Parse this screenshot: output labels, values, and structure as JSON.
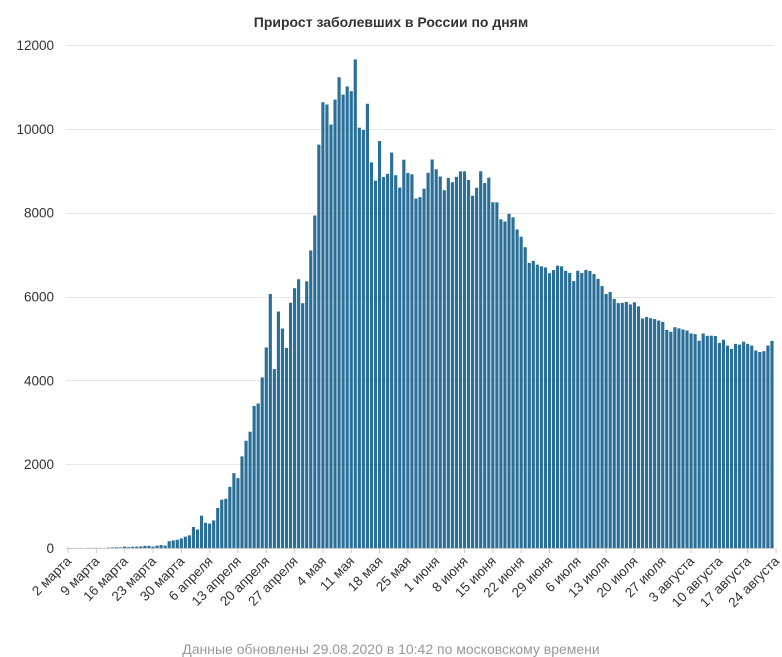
{
  "chart_data": {
    "type": "bar",
    "title": "Прирост заболевших в России по дням",
    "footer": "Данные обновлены 29.08.2020 в 10:42 по московскому времени",
    "xlabel": "",
    "ylabel": "",
    "ylim": [
      0,
      12000
    ],
    "yticks": [
      "0",
      "2000",
      "4000",
      "6000",
      "8000",
      "10000",
      "12000"
    ],
    "ytick_values": [
      0,
      2000,
      4000,
      6000,
      8000,
      10000,
      12000
    ],
    "xtick_labels": [
      "2 марта",
      "9 марта",
      "16 марта",
      "23 марта",
      "30 марта",
      "6 апреля",
      "13 апреля",
      "20 апреля",
      "27 апреля",
      "4 мая",
      "11 мая",
      "18 мая",
      "25 мая",
      "1 июня",
      "8 июня",
      "15 июня",
      "22 июня",
      "29 июня",
      "6 июля",
      "13 июля",
      "20 июля",
      "27 июля",
      "3 августа",
      "10 августа",
      "17 августа",
      "24 августа"
    ],
    "grid": true,
    "legend": "none",
    "bar_color": "#2a6f97",
    "start_date": "2 марта",
    "values": [
      3,
      0,
      1,
      2,
      0,
      4,
      3,
      3,
      3,
      0,
      8,
      14,
      17,
      14,
      34,
      20,
      29,
      32,
      38,
      52,
      54,
      33,
      57,
      71,
      57,
      163,
      182,
      196,
      228,
      270,
      302,
      501,
      440,
      771,
      601,
      582,
      658,
      954,
      1154,
      1175,
      1459,
      1786,
      1667,
      2186,
      2558,
      2774,
      3388,
      3448,
      4070,
      4785,
      6060,
      4268,
      5642,
      5236,
      4774,
      5849,
      6198,
      6411,
      5841,
      6361,
      7099,
      7933,
      9623,
      10633,
      10581,
      10102,
      10699,
      11231,
      10817,
      11012,
      10899,
      11656,
      10028,
      9974,
      10598,
      9200,
      8764,
      9709,
      8849,
      8926,
      9434,
      8894,
      8599,
      9263,
      8946,
      8915,
      8338,
      8371,
      8572,
      8952,
      9268,
      9035,
      8863,
      8536,
      8831,
      8726,
      8855,
      8984,
      8985,
      8779,
      8404,
      8595,
      8987,
      8706,
      8835,
      8248,
      8246,
      7843,
      7790,
      7972,
      7889,
      7600,
      7425,
      7176,
      6800,
      6852,
      6760,
      6719,
      6693,
      6556,
      6632,
      6736,
      6719,
      6611,
      6562,
      6368,
      6615,
      6562,
      6635,
      6611,
      6537,
      6422,
      6248,
      6060,
      6109,
      5940,
      5842,
      5848,
      5871,
      5811,
      5862,
      5765,
      5475,
      5509,
      5482,
      5462,
      5427,
      5395,
      5204,
      5159,
      5267,
      5241,
      5212,
      5189,
      5118,
      5102,
      4945,
      5118,
      5061,
      5065,
      5057,
      4892,
      4969,
      4828,
      4748,
      4870,
      4852,
      4921,
      4870,
      4829,
      4711,
      4676,
      4696,
      4829,
      4941
    ]
  }
}
